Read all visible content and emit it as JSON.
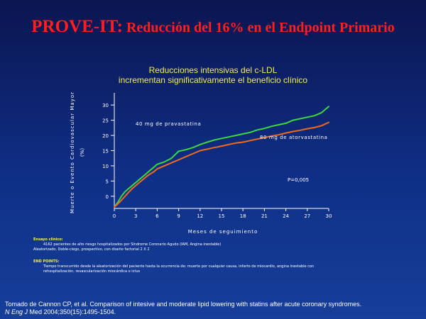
{
  "slide": {
    "title_main": "PROVE-IT:",
    "title_rest": " Reducción del 16% en el Endpoint Primario"
  },
  "chart_subtitle": [
    "Reducciones intensivas del c-LDL",
    "incrementan significativamente el beneficio clínico"
  ],
  "chart_data": {
    "type": "line",
    "xlabel": "Meses de seguimiento",
    "ylabel": [
      "Muerte o Evento Cardiovascular Mayor",
      "(%)"
    ],
    "xlim": [
      0,
      30
    ],
    "ylim": [
      -4,
      34
    ],
    "x_ticks": [
      "0",
      "3",
      "6",
      "9",
      "12",
      "15",
      "18",
      "21",
      "24",
      "27",
      "30"
    ],
    "y_ticks": [
      "0",
      "5",
      "10",
      "15",
      "20",
      "25",
      "30"
    ],
    "series": [
      {
        "name": "40 mg de pravastatina",
        "color": "#3ed83e",
        "x": [
          0,
          0.5,
          1,
          1.5,
          2,
          2.5,
          3,
          3.5,
          4,
          4.5,
          5,
          5.5,
          6,
          7,
          8,
          9,
          10,
          11,
          12,
          13,
          14,
          15,
          16,
          17,
          18,
          19,
          20,
          21,
          22,
          23,
          24,
          25,
          26,
          27,
          28,
          29,
          30
        ],
        "y": [
          -3.5,
          -2,
          0,
          1.5,
          2.5,
          3.5,
          4.5,
          5.5,
          6.5,
          7.5,
          8.5,
          9.5,
          10.5,
          11.3,
          12.5,
          14.8,
          15.3,
          16,
          17,
          17.8,
          18.5,
          19,
          19.5,
          20,
          20.5,
          21,
          21.8,
          22.3,
          23,
          23.5,
          24,
          25,
          25.5,
          26,
          26.5,
          27.5,
          29.5
        ]
      },
      {
        "name": "80 mg de atorvastatina",
        "color": "#ee6a1e",
        "x": [
          0,
          0.5,
          1,
          1.5,
          2,
          2.5,
          3,
          3.5,
          4,
          4.5,
          5,
          5.5,
          6,
          7,
          8,
          9,
          10,
          11,
          12,
          13,
          14,
          15,
          16,
          17,
          18,
          19,
          20,
          21,
          22,
          23,
          24,
          25,
          26,
          27,
          28,
          29,
          30
        ],
        "y": [
          -3.5,
          -2.5,
          -1.3,
          0,
          1.3,
          2.5,
          3.5,
          4.5,
          5.5,
          6.5,
          7.3,
          8,
          9,
          10,
          11,
          12,
          13,
          14,
          15,
          15.5,
          16,
          16.5,
          17,
          17.5,
          17.8,
          18.3,
          18.8,
          19.3,
          19.8,
          20.2,
          20.8,
          21.3,
          21.7,
          22.2,
          22.6,
          23.2,
          24.3
        ]
      }
    ],
    "annotations": [
      "P=0,005"
    ],
    "grid": false,
    "legend": "inline labels"
  },
  "notes": {
    "design_head": "Ensayo clínico:",
    "design_lines": [
      "4162 pacientes de alto riesgo hospitalizados por Síndrome Coronario Agudo (IAM, Angina inestable)",
      "Aleatorizado, Doble-ciego, prospectivo, con diseño factorial 2 X 2"
    ],
    "endpoint_head": "END POINTS:",
    "endpoint_lines": [
      "Tiempo transcurrido desde la aleatorización del paciente hasta la ocurrencia de: muerte por cualquier causa, infarto de miocardio, angina inestable con",
      "rehospitalización, revascularización miocárdica o ictus"
    ]
  },
  "citation": {
    "line1": "Tomado de Cannon CP, et al. Comparison of intesive and moderate lipid lowering with statins after acute coronary syndromes.",
    "journal": "N Eng J",
    "line2_rest": " Med 2004;350(15):1495-1504."
  }
}
